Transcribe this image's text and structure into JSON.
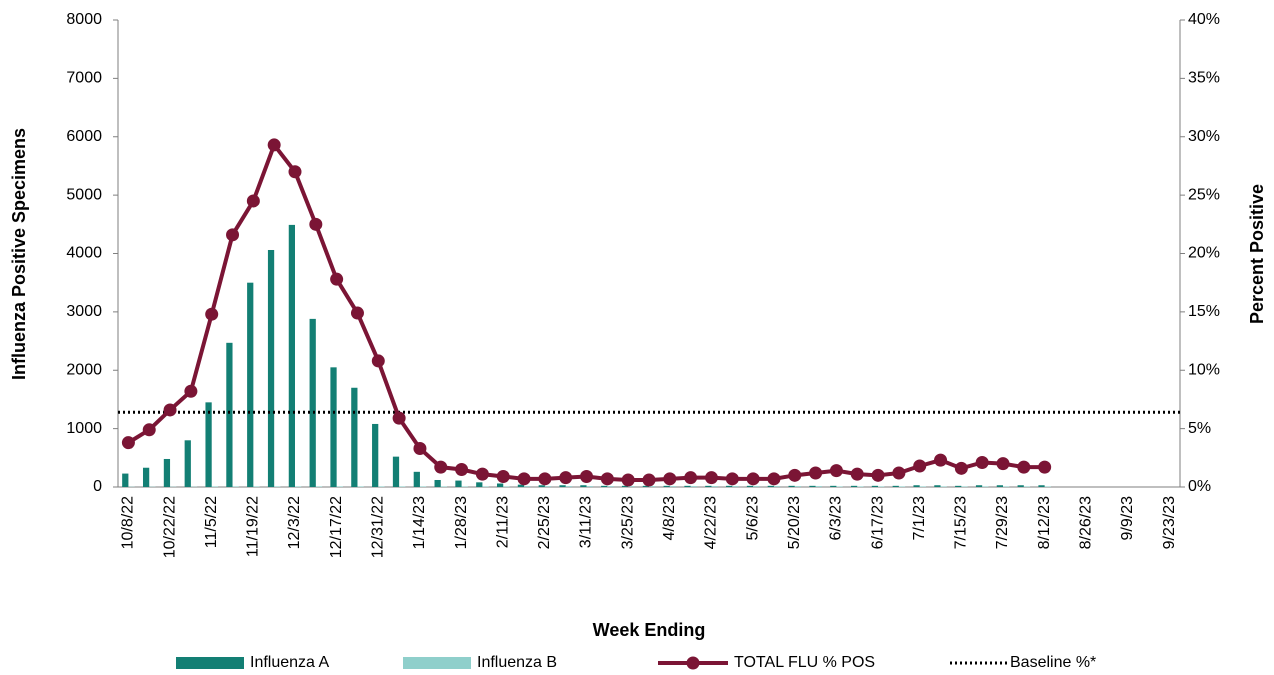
{
  "chart_data": {
    "type": "bar",
    "x_label": "Week Ending",
    "y_label": "Influenza Positive Specimens",
    "y2_label": "Percent Positive",
    "categories": [
      "10/8/22",
      null,
      "10/22/22",
      null,
      "11/5/22",
      null,
      "11/19/22",
      null,
      "12/3/22",
      null,
      "12/17/22",
      null,
      "12/31/22",
      null,
      "1/14/23",
      null,
      "1/28/23",
      null,
      "2/11/23",
      null,
      "2/25/23",
      null,
      "3/11/23",
      null,
      "3/25/23",
      null,
      "4/8/23",
      null,
      "4/22/23",
      null,
      "5/6/23",
      null,
      "5/20/23",
      null,
      "6/3/23",
      null,
      "6/17/23",
      null,
      "7/1/23",
      null,
      "7/15/23",
      null,
      "7/29/23",
      null,
      "8/12/23",
      null,
      "8/26/23",
      null,
      "9/9/23",
      null,
      "9/23/23"
    ],
    "series": [
      {
        "name": "Influenza A",
        "type": "bar",
        "color": "#137f74",
        "values": [
          230,
          330,
          480,
          800,
          1450,
          2470,
          3500,
          4060,
          4490,
          2880,
          2050,
          1700,
          1080,
          520,
          260,
          120,
          110,
          80,
          60,
          40,
          30,
          30,
          30,
          20,
          20,
          20,
          20,
          20,
          20,
          20,
          20,
          20,
          20,
          20,
          20,
          20,
          20,
          20,
          30,
          30,
          20,
          30,
          30,
          30,
          30,
          null,
          null,
          null,
          null,
          null,
          null
        ]
      },
      {
        "name": "Influenza B",
        "type": "bar",
        "color": "#8fcfcb",
        "values": [
          5,
          5,
          5,
          5,
          10,
          10,
          10,
          10,
          10,
          10,
          10,
          10,
          10,
          10,
          10,
          10,
          10,
          10,
          10,
          15,
          15,
          15,
          15,
          15,
          15,
          15,
          15,
          15,
          15,
          15,
          15,
          15,
          15,
          15,
          10,
          10,
          10,
          10,
          10,
          10,
          10,
          10,
          10,
          10,
          10,
          null,
          null,
          null,
          null,
          null,
          null
        ]
      },
      {
        "name": "TOTAL FLU % POS",
        "type": "line",
        "axis": "y2",
        "color": "#7b1535",
        "values": [
          3.8,
          4.9,
          6.6,
          8.2,
          14.8,
          21.6,
          24.5,
          29.3,
          27.0,
          22.5,
          17.8,
          14.9,
          10.8,
          5.9,
          3.3,
          1.7,
          1.5,
          1.1,
          0.9,
          0.7,
          0.7,
          0.8,
          0.9,
          0.7,
          0.6,
          0.6,
          0.7,
          0.8,
          0.8,
          0.7,
          0.7,
          0.7,
          1.0,
          1.2,
          1.4,
          1.1,
          1.0,
          1.2,
          1.8,
          2.3,
          1.6,
          2.1,
          2.0,
          1.7,
          1.7,
          null,
          null,
          null,
          null,
          null,
          null
        ]
      }
    ],
    "baseline": {
      "name": "Baseline %*",
      "value": 6.4,
      "axis": "y2",
      "color": "#000000"
    },
    "ylim": [
      0,
      8000
    ],
    "yticks": [
      0,
      1000,
      2000,
      3000,
      4000,
      5000,
      6000,
      7000,
      8000
    ],
    "y2lim": [
      0,
      40
    ],
    "y2ticks": [
      {
        "value": 0,
        "label": "0%"
      },
      {
        "value": 5,
        "label": "5%"
      },
      {
        "value": 10,
        "label": "10%"
      },
      {
        "value": 15,
        "label": "15%"
      },
      {
        "value": 20,
        "label": "20%"
      },
      {
        "value": 25,
        "label": "25%"
      },
      {
        "value": 30,
        "label": "30%"
      },
      {
        "value": 35,
        "label": "35%"
      },
      {
        "value": 40,
        "label": "40%"
      }
    ],
    "grid": false
  }
}
